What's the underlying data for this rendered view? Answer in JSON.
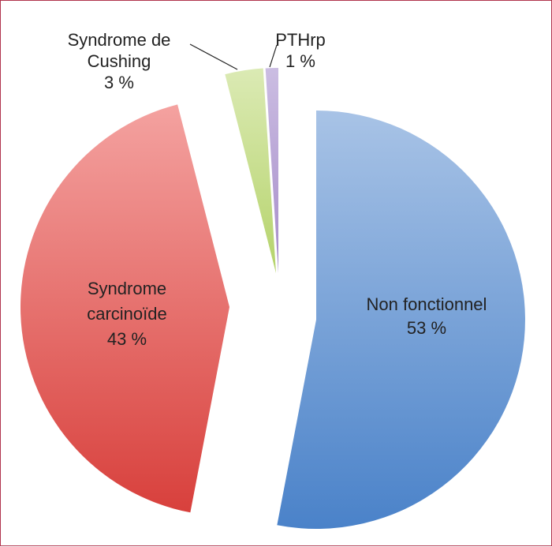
{
  "chart_data": {
    "type": "pie",
    "title": "",
    "exploded": true,
    "slices": [
      {
        "name": "Non fonctionnel",
        "value": 53,
        "label_lines": [
          "Non fonctionnel",
          "53 %"
        ],
        "color": "#6f98d3",
        "label_position": "inside"
      },
      {
        "name": "Syndrome carcinoïde",
        "value": 43,
        "label_lines": [
          "Syndrome",
          "carcinoïde",
          "43 %"
        ],
        "color": "#e6605b",
        "label_position": "inside"
      },
      {
        "name": "Syndrome de Cushing",
        "value": 3,
        "label_lines": [
          "Syndrome de",
          "Cushing",
          "3 %"
        ],
        "color": "#cbe08e",
        "label_position": "outside"
      },
      {
        "name": "PTHrp",
        "value": 1,
        "label_lines": [
          "PTHrp",
          "1 %"
        ],
        "color": "#b9a5d6",
        "label_position": "outside"
      }
    ]
  }
}
